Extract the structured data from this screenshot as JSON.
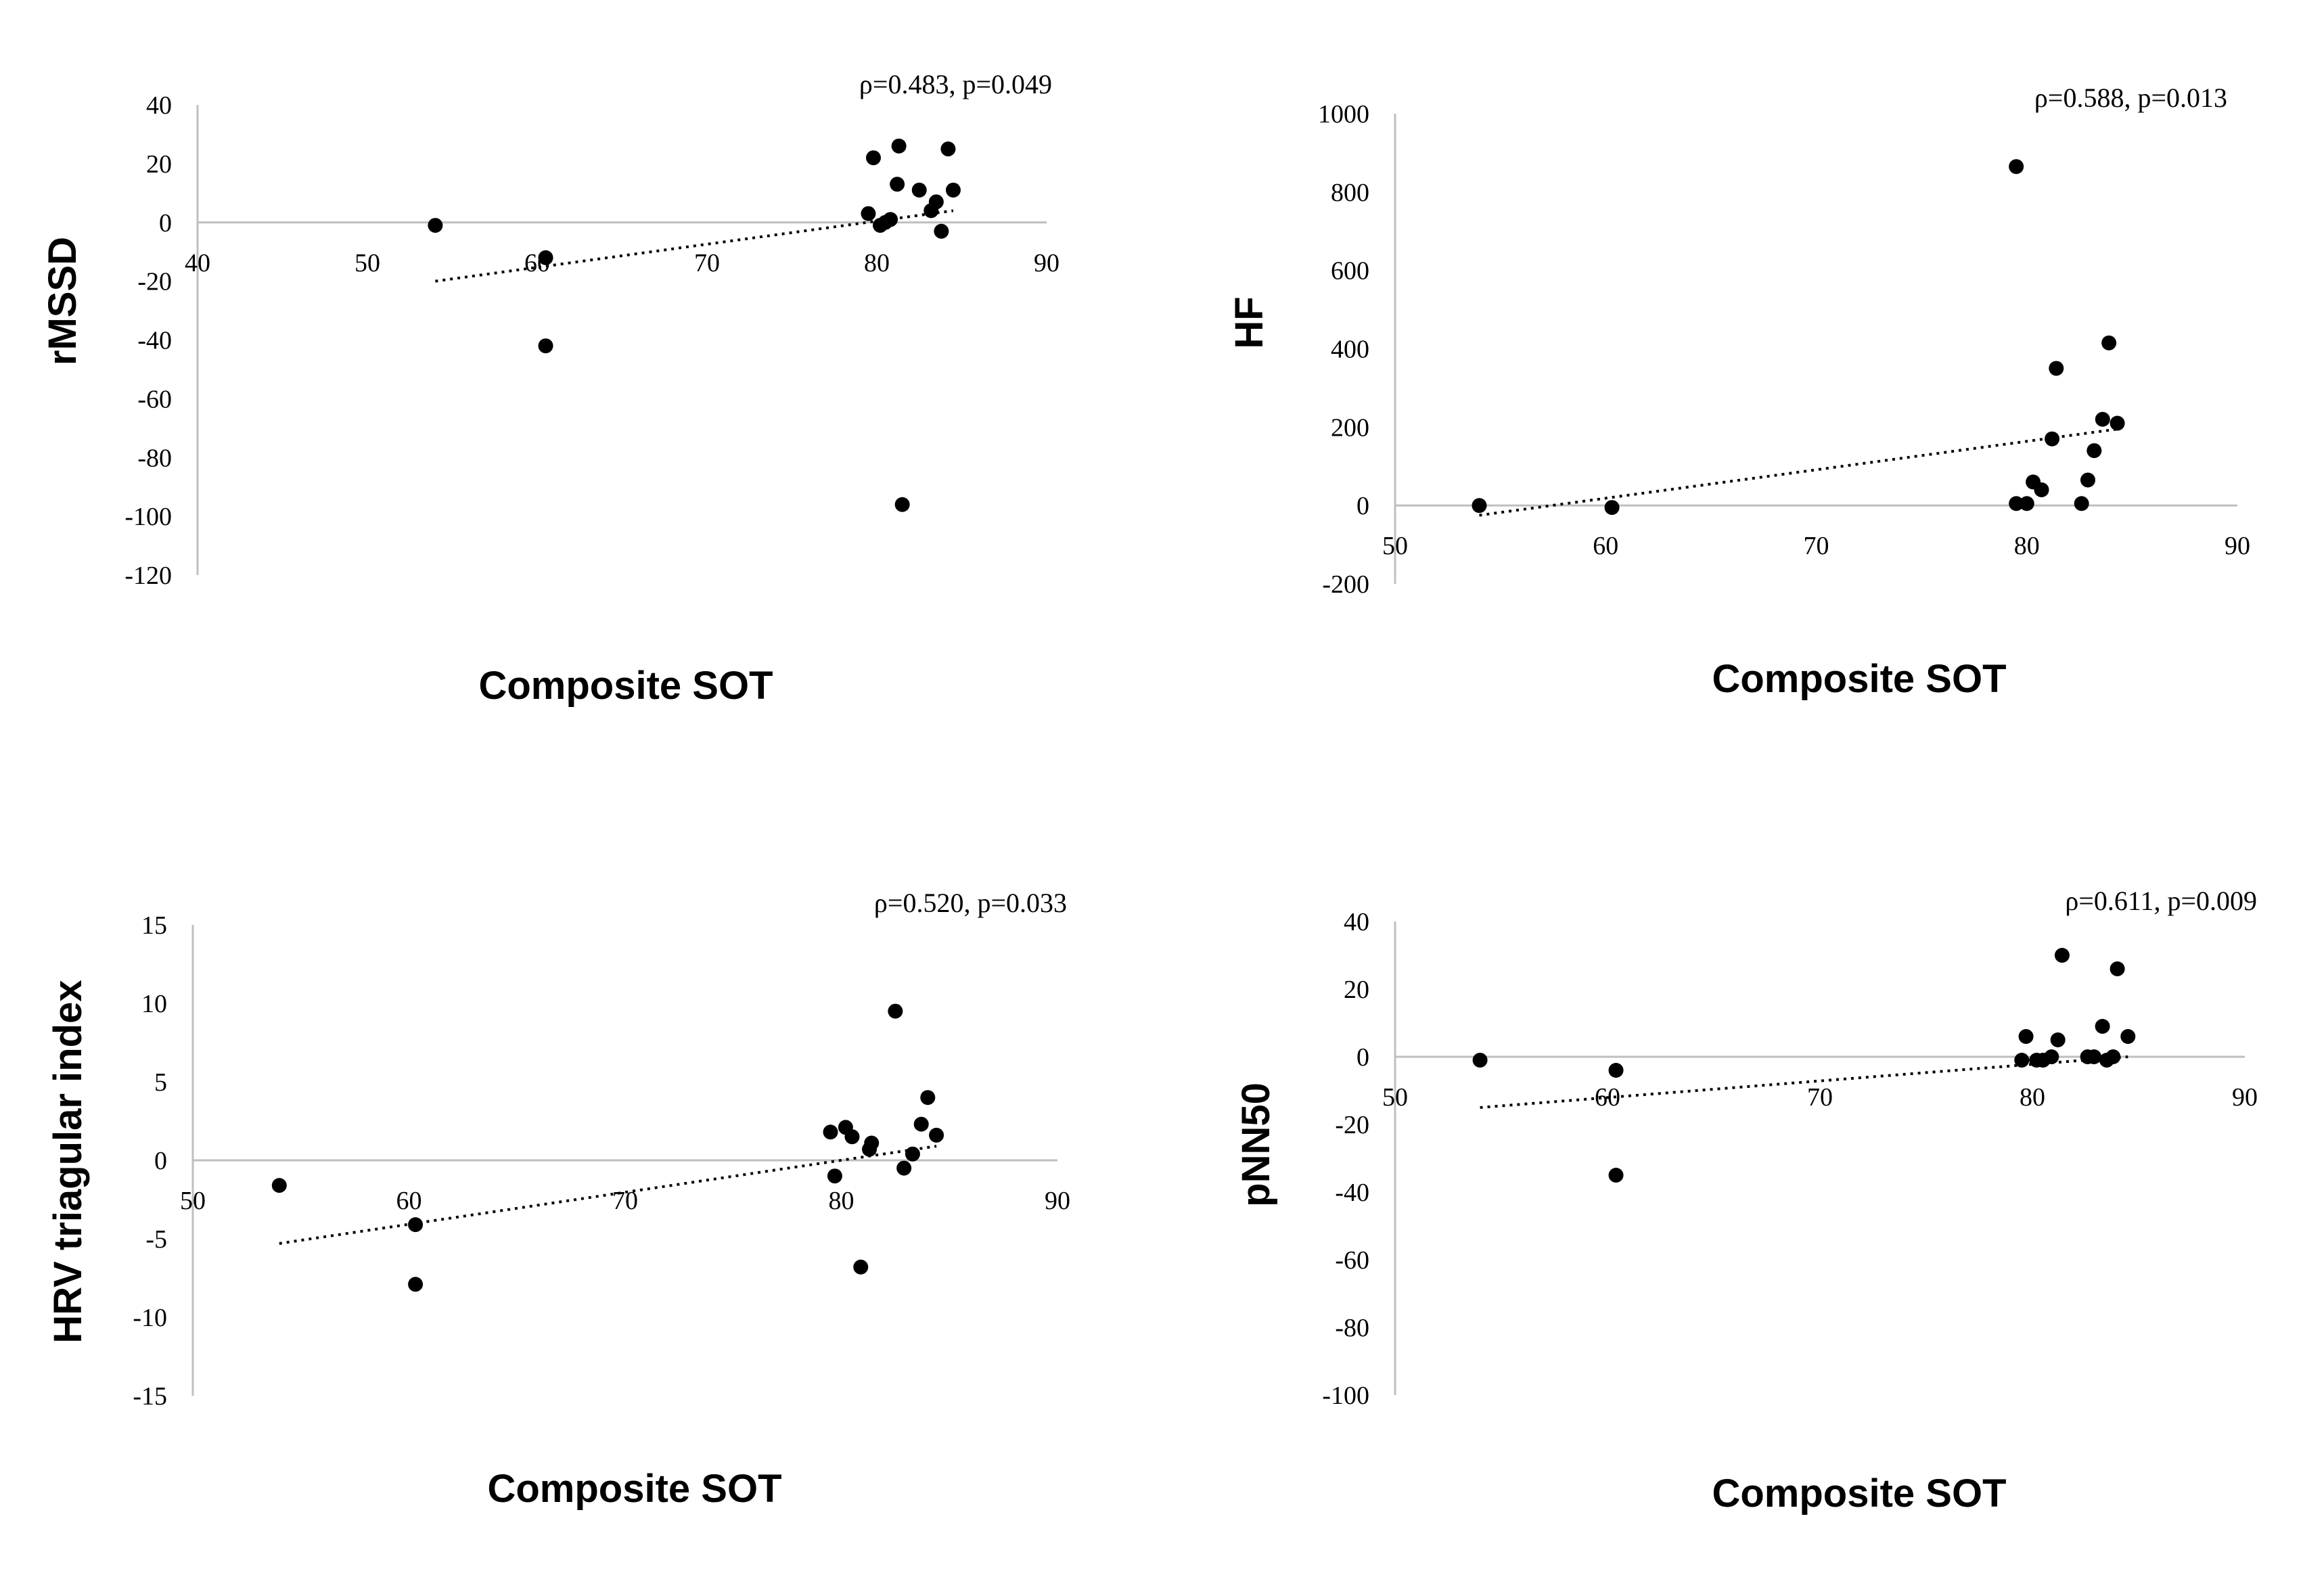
{
  "chart_data": [
    {
      "type": "scatter",
      "title": "",
      "annotation": "ρ=0.483, p=0.049",
      "xlabel": "Composite SOT",
      "ylabel": "rMSSD",
      "xlim": [
        40,
        90
      ],
      "ylim": [
        -120,
        40
      ],
      "xticks": [
        40,
        50,
        60,
        70,
        80,
        90
      ],
      "yticks": [
        40,
        20,
        0,
        -20,
        -40,
        -60,
        -80,
        -100,
        -120
      ],
      "x": [
        54,
        60.5,
        60.5,
        79.5,
        79.8,
        80.2,
        80.5,
        80.8,
        81.2,
        81.3,
        81.5,
        82.5,
        83.2,
        83.5,
        83.8,
        84.2,
        84.5
      ],
      "y": [
        -1,
        -12,
        -42,
        3,
        22,
        -1,
        0,
        1,
        13,
        26,
        -96,
        11,
        4,
        7,
        -3,
        25,
        11
      ],
      "trend": {
        "x": [
          54,
          84.5
        ],
        "y": [
          -20,
          4
        ]
      }
    },
    {
      "type": "scatter",
      "title": "",
      "annotation": "ρ=0.588, p=0.013",
      "xlabel": "Composite SOT",
      "ylabel": "HF",
      "xlim": [
        50,
        90
      ],
      "ylim": [
        -200,
        1000
      ],
      "xticks": [
        50,
        60,
        70,
        80,
        90
      ],
      "yticks": [
        1000,
        800,
        600,
        400,
        200,
        0,
        -200
      ],
      "x": [
        54,
        60.3,
        79.5,
        79.5,
        80,
        80.3,
        80.7,
        81.2,
        81.4,
        82.6,
        82.9,
        83.2,
        83.6,
        83.9,
        84.3
      ],
      "y": [
        0,
        -5,
        865,
        5,
        5,
        60,
        40,
        170,
        350,
        5,
        65,
        140,
        220,
        415,
        210
      ],
      "trend": {
        "x": [
          54,
          84.3
        ],
        "y": [
          -25,
          195
        ]
      }
    },
    {
      "type": "scatter",
      "title": "",
      "annotation": "ρ=0.520, p=0.033",
      "xlabel": "Composite SOT",
      "ylabel": "HRV triagular index",
      "xlim": [
        50,
        90
      ],
      "ylim": [
        -15,
        15
      ],
      "xticks": [
        50,
        60,
        70,
        80,
        90
      ],
      "yticks": [
        15,
        10,
        5,
        0,
        -5,
        -10,
        -15
      ],
      "x": [
        54,
        60.3,
        60.3,
        79.5,
        79.7,
        80.2,
        80.5,
        80.9,
        81.3,
        81.4,
        82.5,
        82.9,
        83.3,
        83.7,
        84,
        84.4
      ],
      "y": [
        -1.6,
        -4.1,
        -7.9,
        1.8,
        -1,
        2.1,
        1.5,
        -6.8,
        0.7,
        1.1,
        9.5,
        -0.5,
        0.4,
        2.3,
        4,
        1.6
      ],
      "trend": {
        "x": [
          54,
          84.4
        ],
        "y": [
          -5.3,
          0.9
        ]
      }
    },
    {
      "type": "scatter",
      "title": "",
      "annotation": "ρ=0.611, p=0.009",
      "xlabel": "Composite SOT",
      "ylabel": "pNN50",
      "xlim": [
        50,
        90
      ],
      "ylim": [
        -100,
        40
      ],
      "xticks": [
        50,
        60,
        70,
        80,
        90
      ],
      "yticks": [
        40,
        20,
        0,
        -20,
        -40,
        -60,
        -80,
        -100
      ],
      "x": [
        54,
        60.4,
        60.4,
        79.5,
        79.7,
        80.2,
        80.5,
        80.9,
        81.2,
        81.4,
        82.6,
        82.9,
        83.3,
        83.5,
        83.8,
        84,
        84.5
      ],
      "y": [
        -1,
        -4,
        -35,
        -1,
        6,
        -1,
        -1,
        0,
        5,
        30,
        0,
        0,
        9,
        -1,
        0,
        26,
        6
      ],
      "trend": {
        "x": [
          54,
          84.5
        ],
        "y": [
          -15,
          0
        ]
      }
    }
  ]
}
